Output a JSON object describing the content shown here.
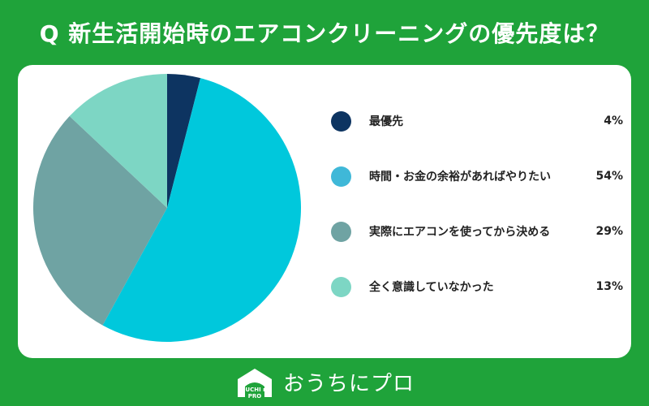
{
  "title": "Q 新生活開始時のエアコンクリーニングの優先度は？",
  "chart_data": {
    "type": "pie",
    "categories": [
      "最優先",
      "時間・お金の余裕があればやりたい",
      "実際にエアコンを使ってから決める",
      "全く意識していなかった"
    ],
    "values": [
      4,
      54,
      29,
      13
    ],
    "value_labels": [
      "4%",
      "54%",
      "29%",
      "13%"
    ],
    "colors": [
      "#0d3461",
      "#00c8dc",
      "#6fa3a3",
      "#7dd6c4"
    ],
    "legend_colors": [
      "#0d3461",
      "#3fb8d8",
      "#6fa3a3",
      "#7dd6c4"
    ],
    "legend_position": "right"
  },
  "footer": {
    "logo_text": "おうちにプロ",
    "logo_caption": "OUCHI ni PRO"
  }
}
